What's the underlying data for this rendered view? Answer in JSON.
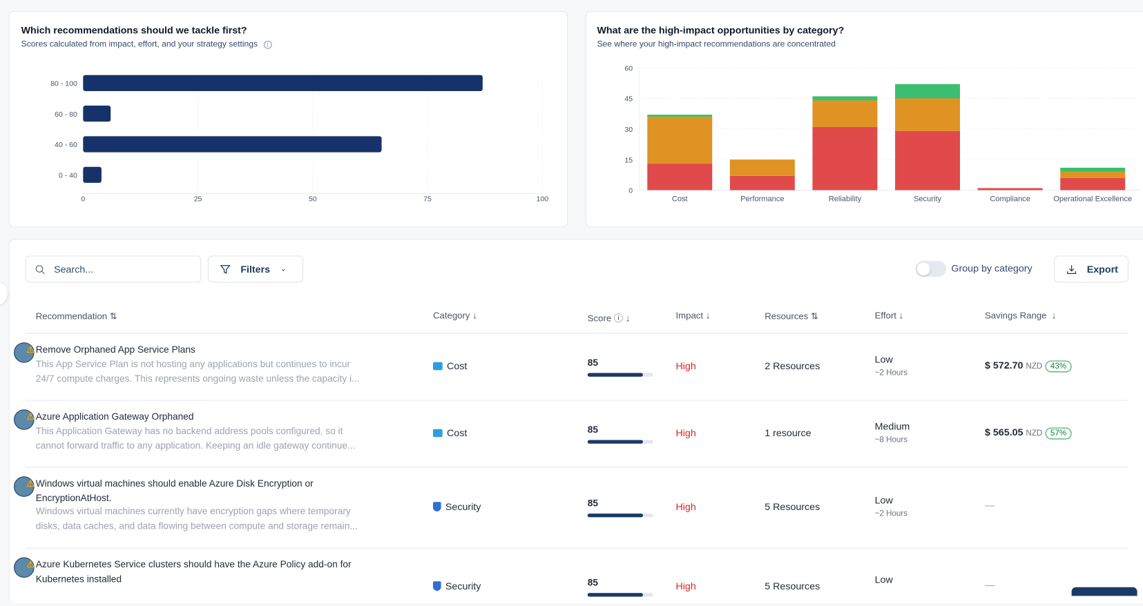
{
  "score_chart": {
    "title": "Which recommendations should we tackle first?",
    "subtitle": "Scores calculated from impact, effort, and your strategy settings"
  },
  "category_chart": {
    "title": "What are the high-impact opportunities by category?",
    "subtitle": "See where your high-impact recommendations are concentrated"
  },
  "chart_data": [
    {
      "type": "bar",
      "orientation": "horizontal",
      "categories": [
        "80 - 100",
        "60 - 80",
        "40 - 60",
        "0 - 40"
      ],
      "values": [
        87,
        6,
        65,
        4
      ],
      "xlim": [
        0,
        100
      ],
      "xticks": [
        "0",
        "25",
        "50",
        "75",
        "100"
      ],
      "color": "#15336a",
      "grid": true
    },
    {
      "type": "bar",
      "stacked": true,
      "categories": [
        "Cost",
        "Performance",
        "Reliability",
        "Security",
        "Compliance",
        "Operational Excellence"
      ],
      "series": [
        {
          "values": [
            13,
            7,
            31,
            29,
            1,
            6
          ],
          "color": "#e04a4a"
        },
        {
          "values": [
            23,
            8,
            13,
            16,
            0,
            3
          ],
          "color": "#e09322"
        },
        {
          "values": [
            1,
            0,
            2,
            7,
            0,
            2
          ],
          "color": "#3bbf6e"
        }
      ],
      "ylim": [
        0,
        60
      ],
      "yticks": [
        "0",
        "15",
        "30",
        "45",
        "60"
      ],
      "grid": true
    }
  ],
  "toolbar": {
    "search_placeholder": "Search...",
    "filters_label": "Filters",
    "group_label": "Group by category",
    "group_enabled": false,
    "export_label": "Export"
  },
  "columns": [
    "Recommendation",
    "Category",
    "Score",
    "Impact",
    "Resources",
    "Effort",
    "Savings Range"
  ],
  "rows": [
    {
      "title": "Remove Orphaned App Service Plans",
      "desc1": "This App Service Plan is not hosting any applications but continues to incur",
      "desc2": "24/7 compute charges. This represents ongoing waste unless the capacity i...",
      "category": "Cost",
      "score": "85",
      "impact": "High",
      "resources": "2 Resources",
      "effort": "Low",
      "effort_time": "~2 Hours",
      "savings": "$ 572.70",
      "currency": "NZD",
      "pct": "43%"
    },
    {
      "title": "Azure Application Gateway Orphaned",
      "desc1": "This Application Gateway has no backend address pools configured, so it",
      "desc2": "cannot forward traffic to any application. Keeping an idle gateway continue...",
      "category": "Cost",
      "score": "85",
      "impact": "High",
      "resources": "1 resource",
      "effort": "Medium",
      "effort_time": "~8 Hours",
      "savings": "$ 565.05",
      "currency": "NZD",
      "pct": "57%"
    },
    {
      "title": "Windows virtual machines should enable Azure Disk Encryption or",
      "title2": "EncryptionAtHost.",
      "desc1": "Windows virtual machines currently have encryption gaps where temporary",
      "desc2": "disks, data caches, and data flowing between compute and storage remain...",
      "category": "Security",
      "score": "85",
      "impact": "High",
      "resources": "5 Resources",
      "effort": "Low",
      "effort_time": "~2 Hours",
      "savings": "—"
    },
    {
      "title": "Azure Kubernetes Service clusters should have the Azure Policy add-on for",
      "title2": "Kubernetes installed",
      "category": "Security",
      "score": "85",
      "impact": "High",
      "resources": "5 Resources",
      "effort": "Low",
      "savings": "—"
    }
  ]
}
